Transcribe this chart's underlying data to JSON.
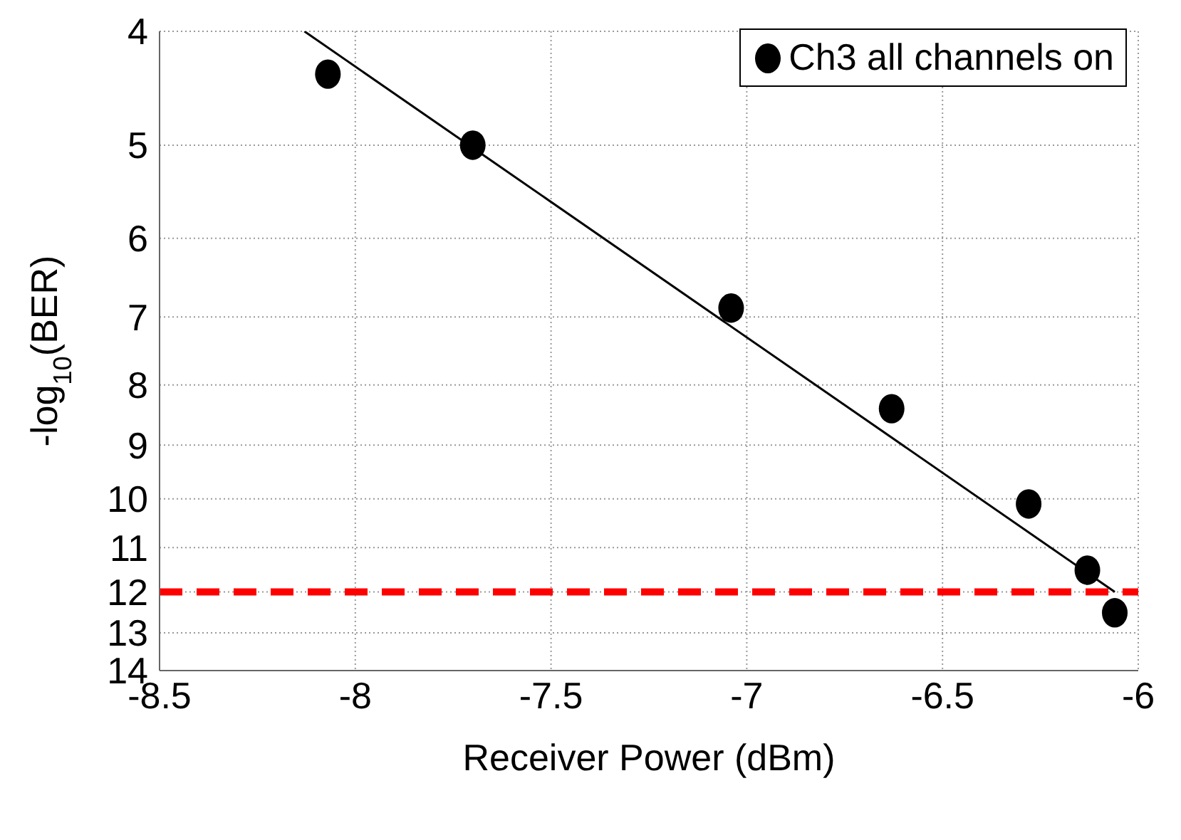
{
  "chart_data": {
    "type": "scatter",
    "xlabel": "Receiver Power (dBm)",
    "ylabel": "-log$_{10}$(BER)",
    "x": [
      -8.07,
      -7.7,
      -7.04,
      -6.63,
      -6.28,
      -6.13,
      -6.06
    ],
    "series": [
      {
        "name": "Ch3 all channels on",
        "color": "#000000",
        "values": [
          4.35,
          5.0,
          6.88,
          8.38,
          10.1,
          11.5,
          12.5
        ],
        "marker": "circle"
      },
      {
        "type": "line",
        "color": "#000000",
        "x": [
          -8.13,
          -6.06
        ],
        "values": [
          4,
          12
        ],
        "marker": "none"
      }
    ],
    "xlim": [
      -8.5,
      -6
    ],
    "xticks": [
      -8.5,
      -8,
      -7.5,
      -7,
      -6.5,
      -6
    ],
    "ylim": [
      14,
      4
    ],
    "yticks": [
      4,
      5,
      6,
      7,
      8,
      9,
      10,
      11,
      12,
      13,
      14
    ],
    "log": "y",
    "ref_lines": [
      {
        "axis": "y",
        "value": 12,
        "color": "#ff0000",
        "line_style": "dashed"
      }
    ],
    "grid": true,
    "legend": "top right"
  }
}
